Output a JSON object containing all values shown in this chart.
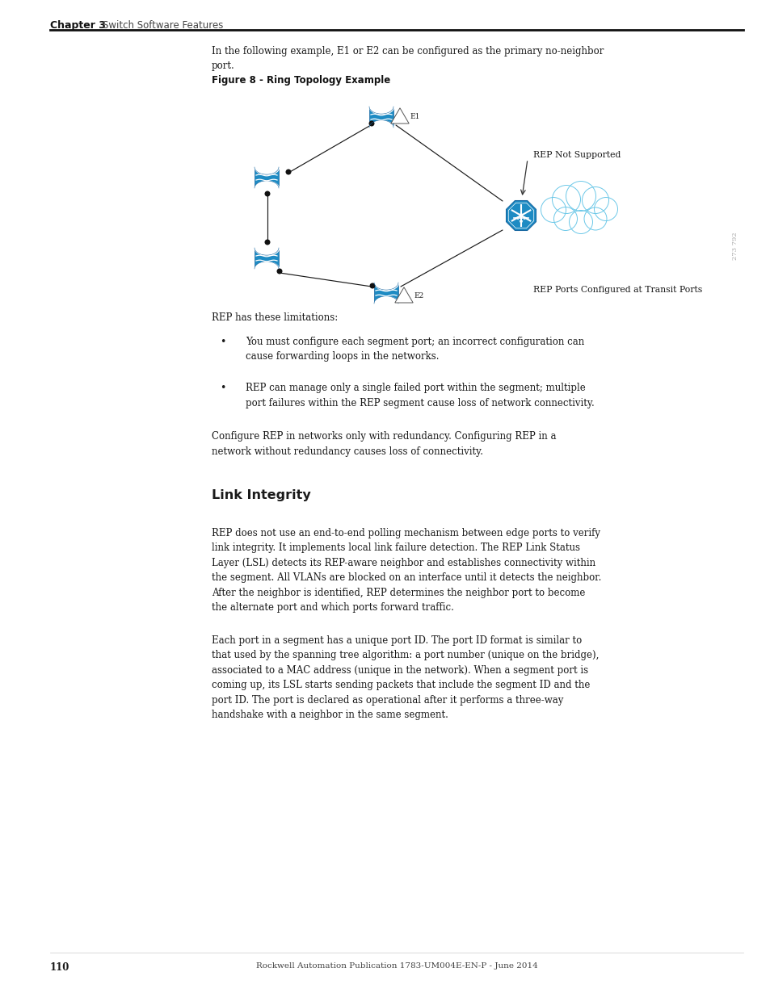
{
  "page_width": 9.54,
  "page_height": 12.35,
  "bg_color": "#ffffff",
  "header_text": "Chapter 3",
  "header_subtext": "Switch Software Features",
  "intro_text1": "In the following example, E1 or E2 can be configured as the primary no-neighbor",
  "intro_text2": "port.",
  "figure_label": "Figure 8 - Ring Topology Example",
  "rep_not_supported": "REP Not Supported",
  "rep_ports_text": "REP Ports Configured at Transit Ports",
  "watermark": "273 792",
  "limitations_header": "REP has these limitations:",
  "bullet1_line1": "You must configure each segment port; an incorrect configuration can",
  "bullet1_line2": "cause forwarding loops in the networks.",
  "bullet2_line1": "REP can manage only a single failed port within the segment; multiple",
  "bullet2_line2": "port failures within the REP segment cause loss of network connectivity.",
  "para2_line1": "Configure REP in networks only with redundancy. Configuring REP in a",
  "para2_line2": "network without redundancy causes loss of connectivity.",
  "section_header": "Link Integrity",
  "para3_line1": "REP does not use an end-to-end polling mechanism between edge ports to verify",
  "para3_line2": "link integrity. It implements local link failure detection. The REP Link Status",
  "para3_line3": "Layer (LSL) detects its REP-aware neighbor and establishes connectivity within",
  "para3_line4": "the segment. All VLANs are blocked on an interface until it detects the neighbor.",
  "para3_line5": "After the neighbor is identified, REP determines the neighbor port to become",
  "para3_line6": "the alternate port and which ports forward traffic.",
  "para4_line1": "Each port in a segment has a unique port ID. The port ID format is similar to",
  "para4_line2": "that used by the spanning tree algorithm: a port number (unique on the bridge),",
  "para4_line3": "associated to a MAC address (unique in the network). When a segment port is",
  "para4_line4": "coming up, its LSL starts sending packets that include the segment ID and the",
  "para4_line5": "port ID. The port is declared as operational after it performs a three-way",
  "para4_line6": "handshake with a neighbor in the same segment.",
  "footer_page": "110",
  "footer_center": "Rockwell Automation Publication 1783-UM004E-EN-P - June 2014",
  "blue_color": "#1e8bc3",
  "dark_blue": "#1565a0",
  "cloud_stroke": "#6cc8e8"
}
